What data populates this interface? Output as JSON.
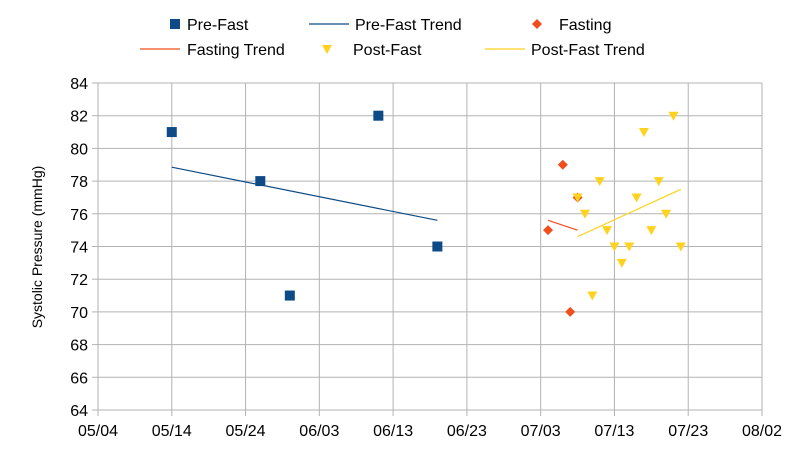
{
  "chart_data": {
    "type": "scatter",
    "title": "",
    "xlabel": "",
    "ylabel": "Systolic Pressure (mmHg)",
    "x_tick_labels": [
      "05/04",
      "05/14",
      "05/24",
      "06/03",
      "06/13",
      "06/23",
      "07/03",
      "07/13",
      "07/23",
      "08/02"
    ],
    "y_tick_labels": [
      "64",
      "66",
      "68",
      "70",
      "72",
      "74",
      "76",
      "78",
      "80",
      "82",
      "84"
    ],
    "xlim": [
      "2020-05-04",
      "2020-08-02"
    ],
    "ylim": [
      64,
      84
    ],
    "grid": true,
    "legend_position": "top",
    "legend": [
      {
        "label": "Pre-Fast",
        "kind": "square",
        "color": "#0e4a86"
      },
      {
        "label": "Pre-Fast Trend",
        "kind": "line",
        "color": "#0e4a86"
      },
      {
        "label": "Fasting",
        "kind": "diamond",
        "color": "#f04e1c"
      },
      {
        "label": "Fasting Trend",
        "kind": "line",
        "color": "#f04e1c"
      },
      {
        "label": "Post-Fast",
        "kind": "triangle-down",
        "color": "#ffd21f"
      },
      {
        "label": "Post-Fast Trend",
        "kind": "line",
        "color": "#ffd21f"
      }
    ],
    "series": [
      {
        "name": "Pre-Fast",
        "marker": "square",
        "color": "#0e4a86",
        "points": [
          {
            "x": "2020-05-14",
            "y": 81
          },
          {
            "x": "2020-05-26",
            "y": 78
          },
          {
            "x": "2020-05-30",
            "y": 71
          },
          {
            "x": "2020-06-11",
            "y": 82
          },
          {
            "x": "2020-06-19",
            "y": 74
          }
        ]
      },
      {
        "name": "Pre-Fast Trend",
        "marker": "line",
        "color": "#0e4a86",
        "points": [
          {
            "x": "2020-05-14",
            "y": 78.85
          },
          {
            "x": "2020-06-19",
            "y": 75.6
          }
        ]
      },
      {
        "name": "Fasting",
        "marker": "diamond",
        "color": "#f04e1c",
        "points": [
          {
            "x": "2020-07-04",
            "y": 75
          },
          {
            "x": "2020-07-06",
            "y": 79
          },
          {
            "x": "2020-07-07",
            "y": 70
          },
          {
            "x": "2020-07-08",
            "y": 77
          }
        ]
      },
      {
        "name": "Fasting Trend",
        "marker": "line",
        "color": "#f04e1c",
        "points": [
          {
            "x": "2020-07-04",
            "y": 75.6
          },
          {
            "x": "2020-07-08",
            "y": 75
          }
        ]
      },
      {
        "name": "Post-Fast",
        "marker": "triangle-down",
        "color": "#ffd21f",
        "points": [
          {
            "x": "2020-07-08",
            "y": 77
          },
          {
            "x": "2020-07-09",
            "y": 76
          },
          {
            "x": "2020-07-10",
            "y": 71
          },
          {
            "x": "2020-07-11",
            "y": 78
          },
          {
            "x": "2020-07-12",
            "y": 75
          },
          {
            "x": "2020-07-13",
            "y": 74
          },
          {
            "x": "2020-07-14",
            "y": 73
          },
          {
            "x": "2020-07-15",
            "y": 74
          },
          {
            "x": "2020-07-16",
            "y": 77
          },
          {
            "x": "2020-07-17",
            "y": 81
          },
          {
            "x": "2020-07-18",
            "y": 75
          },
          {
            "x": "2020-07-19",
            "y": 78
          },
          {
            "x": "2020-07-20",
            "y": 76
          },
          {
            "x": "2020-07-21",
            "y": 82
          },
          {
            "x": "2020-07-22",
            "y": 74
          }
        ]
      },
      {
        "name": "Post-Fast Trend",
        "marker": "line",
        "color": "#ffd21f",
        "points": [
          {
            "x": "2020-07-08",
            "y": 74.6
          },
          {
            "x": "2020-07-22",
            "y": 77.5
          }
        ]
      }
    ]
  },
  "colors": {
    "grid": "#b3b3b3",
    "axis": "#b3b3b3"
  }
}
